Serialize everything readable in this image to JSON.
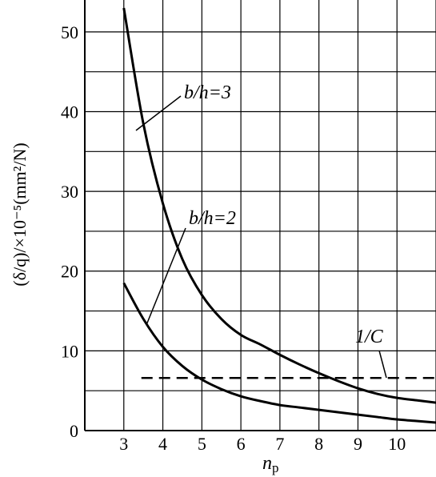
{
  "chart_data": {
    "type": "line",
    "title": "",
    "xlabel": "n",
    "xlabel_subscript": "p",
    "ylabel": "(δ/q)/×10⁻⁵(mm²/N)",
    "xlim": [
      2,
      11
    ],
    "ylim": [
      0,
      54
    ],
    "x_ticks": [
      "3",
      "4",
      "5",
      "6",
      "7",
      "8",
      "9",
      "10"
    ],
    "y_ticks": [
      "0",
      "10",
      "20",
      "30",
      "40",
      "50"
    ],
    "grid": true,
    "series": [
      {
        "name": "b/h=3",
        "style": "solid",
        "x": [
          3,
          3.5,
          4,
          4.5,
          5,
          5.5,
          6,
          6.5,
          7,
          7.5,
          8,
          8.5,
          9,
          9.5,
          10,
          10.5,
          11
        ],
        "y": [
          53,
          38.5,
          28.5,
          21.5,
          17,
          14,
          12,
          10.8,
          9.5,
          8.3,
          7.2,
          6.2,
          5.3,
          4.6,
          4.1,
          3.8,
          3.5
        ]
      },
      {
        "name": "b/h=2",
        "style": "solid",
        "x": [
          3,
          3.5,
          4,
          4.5,
          5,
          5.5,
          6,
          6.5,
          7,
          7.5,
          8,
          8.5,
          9,
          9.5,
          10,
          10.5,
          11
        ],
        "y": [
          18.5,
          14,
          10.5,
          8.1,
          6.4,
          5.2,
          4.3,
          3.7,
          3.2,
          2.9,
          2.6,
          2.3,
          2.0,
          1.7,
          1.4,
          1.2,
          1.0
        ]
      },
      {
        "name": "1/C",
        "style": "dashed",
        "x": [
          3.45,
          11
        ],
        "y": [
          6.6,
          6.6
        ]
      }
    ],
    "labels": {
      "s3": "b/h=3",
      "s2": "b/h=2",
      "c": "1/C"
    }
  }
}
